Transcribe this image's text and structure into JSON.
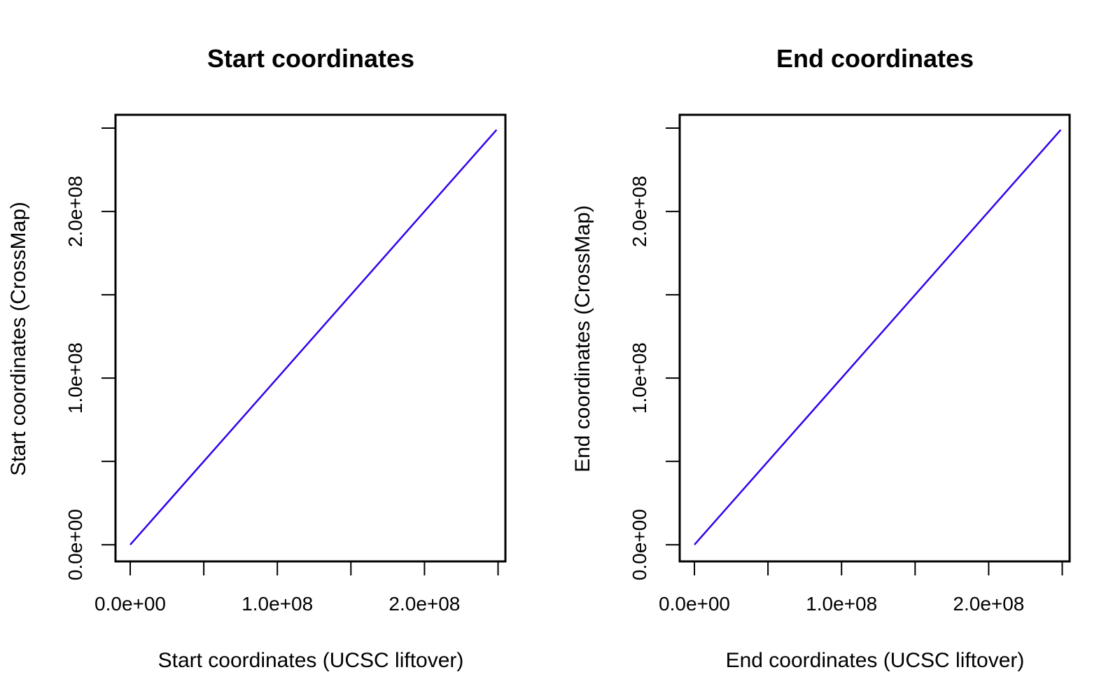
{
  "chart_data": [
    {
      "type": "line",
      "title": "Start coordinates",
      "xlabel": "Start coordinates (UCSC liftover)",
      "ylabel": "Start coordinates (CrossMap)",
      "xlim": [
        -10000000.0,
        255000000.0
      ],
      "ylim": [
        -10000000.0,
        258000000.0
      ],
      "x_ticks": [
        0,
        50000000.0,
        100000000.0,
        150000000.0,
        200000000.0,
        250000000.0
      ],
      "x_tick_labels": [
        "0.0e+00",
        "",
        "1.0e+08",
        "",
        "2.0e+08",
        ""
      ],
      "y_ticks": [
        0,
        50000000.0,
        100000000.0,
        150000000.0,
        200000000.0,
        250000000.0
      ],
      "y_tick_labels": [
        "0.0e+00",
        "",
        "1.0e+08",
        "",
        "2.0e+08",
        ""
      ],
      "grid": false,
      "line_color": "#3300ee",
      "series": [
        {
          "x": [
            0,
            249000000.0
          ],
          "y": [
            0,
            249000000.0
          ]
        }
      ]
    },
    {
      "type": "line",
      "title": "End coordinates",
      "xlabel": "End coordinates (UCSC liftover)",
      "ylabel": "End coordinates (CrossMap)",
      "xlim": [
        -10000000.0,
        255000000.0
      ],
      "ylim": [
        -10000000.0,
        258000000.0
      ],
      "x_ticks": [
        0,
        50000000.0,
        100000000.0,
        150000000.0,
        200000000.0,
        250000000.0
      ],
      "x_tick_labels": [
        "0.0e+00",
        "",
        "1.0e+08",
        "",
        "2.0e+08",
        ""
      ],
      "y_ticks": [
        0,
        50000000.0,
        100000000.0,
        150000000.0,
        200000000.0,
        250000000.0
      ],
      "y_tick_labels": [
        "0.0e+00",
        "",
        "1.0e+08",
        "",
        "2.0e+08",
        ""
      ],
      "grid": false,
      "line_color": "#3300ee",
      "series": [
        {
          "x": [
            0,
            249000000.0
          ],
          "y": [
            0,
            249000000.0
          ]
        }
      ]
    }
  ]
}
